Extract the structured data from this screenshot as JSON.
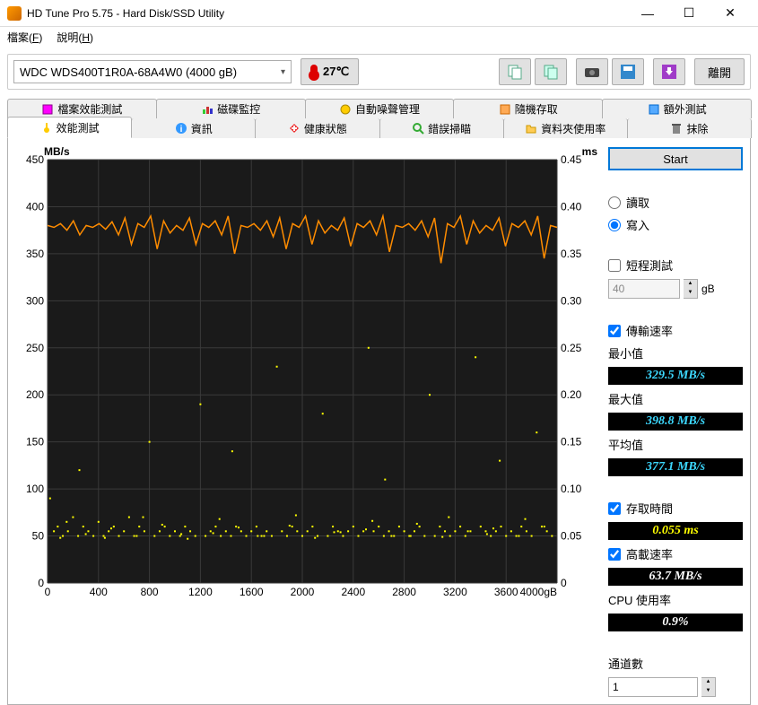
{
  "window": {
    "title": "HD Tune Pro 5.75 - Hard Disk/SSD Utility"
  },
  "menu": {
    "file": "檔案(F)",
    "help": "說明(H)"
  },
  "toolbar": {
    "drive": "WDC  WDS400T1R0A-68A4W0 (4000 gB)",
    "temperature": "27℃",
    "exit": "離開"
  },
  "tabs_row1": {
    "t1": "檔案效能測試",
    "t2": "磁碟監控",
    "t3": "自動噪聲管理",
    "t4": "隨機存取",
    "t5": "額外測試"
  },
  "tabs_row2": {
    "t1": "效能測試",
    "t2": "資訊",
    "t3": "健康狀態",
    "t4": "錯誤掃瞄",
    "t5": "資料夾使用率",
    "t6": "抹除"
  },
  "chart": {
    "y_left_label": "MB/s",
    "y_right_label": "ms",
    "y_left_ticks": [
      "450",
      "400",
      "350",
      "300",
      "250",
      "200",
      "150",
      "100",
      "50",
      "0"
    ],
    "y_right_ticks": [
      "0.45",
      "0.40",
      "0.35",
      "0.30",
      "0.25",
      "0.20",
      "0.15",
      "0.10",
      "0.05",
      "0"
    ],
    "x_ticks": [
      "0",
      "400",
      "800",
      "1200",
      "1600",
      "2000",
      "2400",
      "2800",
      "3200",
      "3600",
      "4000gB"
    ],
    "background": "#1a1a1a",
    "grid_color": "#3a3a3a",
    "line_color": "#ff8c00",
    "scatter_color": "#ffff00",
    "y_left_max": 450,
    "y_right_max": 0.45,
    "x_max": 4000,
    "transfer_series_mbps": [
      380,
      378,
      382,
      375,
      385,
      370,
      380,
      378,
      382,
      376,
      384,
      370,
      388,
      360,
      382,
      378,
      390,
      355,
      385,
      372,
      380,
      375,
      388,
      360,
      382,
      378,
      385,
      370,
      390,
      350,
      380,
      378,
      382,
      375,
      385,
      368,
      388,
      355,
      382,
      378,
      390,
      360,
      385,
      372,
      380,
      375,
      388,
      358,
      382,
      378,
      385,
      370,
      390,
      352,
      380,
      378,
      382,
      375,
      385,
      368,
      388,
      340,
      382,
      378,
      390,
      360,
      385,
      372,
      380,
      375,
      388,
      358,
      382,
      378,
      385,
      370,
      390,
      345,
      380,
      378
    ],
    "access_points_ms": [
      [
        20,
        0.09
      ],
      [
        50,
        0.055
      ],
      [
        80,
        0.06
      ],
      [
        120,
        0.05
      ],
      [
        160,
        0.055
      ],
      [
        200,
        0.07
      ],
      [
        240,
        0.05
      ],
      [
        280,
        0.06
      ],
      [
        320,
        0.055
      ],
      [
        360,
        0.05
      ],
      [
        400,
        0.065
      ],
      [
        440,
        0.05
      ],
      [
        480,
        0.055
      ],
      [
        520,
        0.06
      ],
      [
        560,
        0.05
      ],
      [
        600,
        0.055
      ],
      [
        640,
        0.07
      ],
      [
        680,
        0.05
      ],
      [
        720,
        0.06
      ],
      [
        760,
        0.055
      ],
      [
        800,
        0.15
      ],
      [
        840,
        0.05
      ],
      [
        880,
        0.055
      ],
      [
        920,
        0.06
      ],
      [
        960,
        0.05
      ],
      [
        1000,
        0.055
      ],
      [
        1040,
        0.05
      ],
      [
        1080,
        0.06
      ],
      [
        1120,
        0.055
      ],
      [
        1160,
        0.05
      ],
      [
        1200,
        0.19
      ],
      [
        1240,
        0.05
      ],
      [
        1280,
        0.055
      ],
      [
        1320,
        0.06
      ],
      [
        1360,
        0.05
      ],
      [
        1400,
        0.055
      ],
      [
        1440,
        0.05
      ],
      [
        1480,
        0.06
      ],
      [
        1520,
        0.055
      ],
      [
        1560,
        0.05
      ],
      [
        1600,
        0.055
      ],
      [
        1640,
        0.06
      ],
      [
        1680,
        0.05
      ],
      [
        1720,
        0.055
      ],
      [
        1760,
        0.05
      ],
      [
        1800,
        0.23
      ],
      [
        1840,
        0.055
      ],
      [
        1880,
        0.05
      ],
      [
        1920,
        0.06
      ],
      [
        1960,
        0.055
      ],
      [
        2000,
        0.05
      ],
      [
        2040,
        0.055
      ],
      [
        2080,
        0.06
      ],
      [
        2120,
        0.05
      ],
      [
        2160,
        0.18
      ],
      [
        2200,
        0.05
      ],
      [
        2240,
        0.06
      ],
      [
        2280,
        0.055
      ],
      [
        2320,
        0.05
      ],
      [
        2360,
        0.055
      ],
      [
        2400,
        0.06
      ],
      [
        2440,
        0.05
      ],
      [
        2480,
        0.055
      ],
      [
        2520,
        0.25
      ],
      [
        2560,
        0.055
      ],
      [
        2600,
        0.06
      ],
      [
        2640,
        0.05
      ],
      [
        2680,
        0.055
      ],
      [
        2720,
        0.05
      ],
      [
        2760,
        0.06
      ],
      [
        2800,
        0.055
      ],
      [
        2840,
        0.05
      ],
      [
        2880,
        0.055
      ],
      [
        2920,
        0.06
      ],
      [
        2960,
        0.05
      ],
      [
        3000,
        0.2
      ],
      [
        3040,
        0.05
      ],
      [
        3080,
        0.06
      ],
      [
        3120,
        0.055
      ],
      [
        3160,
        0.05
      ],
      [
        3200,
        0.055
      ],
      [
        3240,
        0.06
      ],
      [
        3280,
        0.05
      ],
      [
        3320,
        0.055
      ],
      [
        3360,
        0.24
      ],
      [
        3400,
        0.06
      ],
      [
        3440,
        0.055
      ],
      [
        3480,
        0.05
      ],
      [
        3520,
        0.055
      ],
      [
        3560,
        0.06
      ],
      [
        3600,
        0.05
      ],
      [
        3640,
        0.055
      ],
      [
        3680,
        0.05
      ],
      [
        3720,
        0.06
      ],
      [
        3760,
        0.055
      ],
      [
        3800,
        0.05
      ],
      [
        3840,
        0.16
      ],
      [
        3880,
        0.06
      ],
      [
        3920,
        0.055
      ],
      [
        3960,
        0.05
      ],
      [
        100,
        0.048
      ],
      [
        300,
        0.052
      ],
      [
        500,
        0.058
      ],
      [
        700,
        0.05
      ],
      [
        900,
        0.062
      ],
      [
        1100,
        0.047
      ],
      [
        1300,
        0.053
      ],
      [
        1500,
        0.059
      ],
      [
        1700,
        0.05
      ],
      [
        1900,
        0.061
      ],
      [
        2100,
        0.048
      ],
      [
        2300,
        0.054
      ],
      [
        2500,
        0.057
      ],
      [
        2700,
        0.05
      ],
      [
        2900,
        0.063
      ],
      [
        3100,
        0.049
      ],
      [
        3300,
        0.055
      ],
      [
        3500,
        0.058
      ],
      [
        3700,
        0.05
      ],
      [
        3900,
        0.06
      ],
      [
        150,
        0.065
      ],
      [
        450,
        0.048
      ],
      [
        750,
        0.07
      ],
      [
        1050,
        0.052
      ],
      [
        1350,
        0.068
      ],
      [
        1650,
        0.05
      ],
      [
        1950,
        0.072
      ],
      [
        2250,
        0.054
      ],
      [
        2550,
        0.066
      ],
      [
        2850,
        0.05
      ],
      [
        3150,
        0.07
      ],
      [
        3450,
        0.052
      ],
      [
        3750,
        0.068
      ],
      [
        250,
        0.12
      ],
      [
        1450,
        0.14
      ],
      [
        2650,
        0.11
      ],
      [
        3550,
        0.13
      ]
    ]
  },
  "side": {
    "start": "Start",
    "read": "讀取",
    "write": "寫入",
    "short_test": "短程測試",
    "short_value": "40",
    "short_unit": "gB",
    "transfer_rate": "傳輸速率",
    "min_label": "最小值",
    "min_value": "329.5 MB/s",
    "max_label": "最大值",
    "max_value": "398.8 MB/s",
    "avg_label": "平均值",
    "avg_value": "377.1 MB/s",
    "access_time": "存取時間",
    "access_value": "0.055 ms",
    "burst_rate": "高載速率",
    "burst_value": "63.7 MB/s",
    "cpu_label": "CPU 使用率",
    "cpu_value": "0.9%",
    "channels": "通道數",
    "channels_value": "1"
  }
}
